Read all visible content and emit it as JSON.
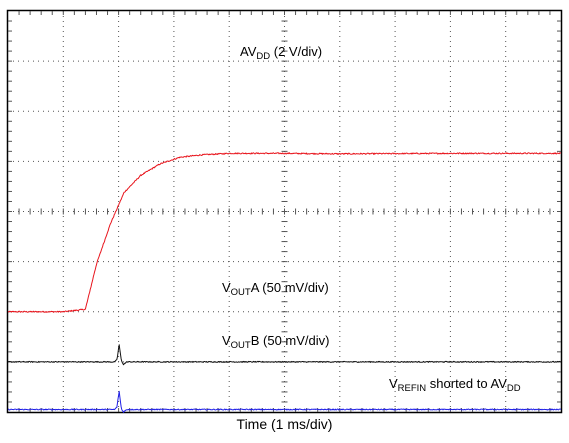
{
  "chart_data": {
    "type": "line",
    "title": "",
    "xlabel": "Time (1 ms/div)",
    "ylabel": "",
    "grid": true,
    "grid_divisions": {
      "x": 10,
      "y": 8
    },
    "xlim": [
      0,
      10
    ],
    "ylim": [
      0,
      8
    ],
    "series": [
      {
        "name": "AVDD (2 V/div)",
        "color": "#e8141c",
        "noise": 0.012,
        "x": [
          0,
          1.0,
          1.4,
          1.6,
          1.85,
          2.1,
          2.4,
          2.75,
          3.1,
          3.5,
          4.0,
          4.5,
          5.0,
          6.0,
          8.0,
          10.0
        ],
        "y": [
          2.0,
          2.0,
          2.05,
          2.95,
          3.75,
          4.38,
          4.72,
          4.95,
          5.08,
          5.13,
          5.16,
          5.16,
          5.16,
          5.15,
          5.16,
          5.16
        ],
        "label": {
          "main": "AV",
          "sub": "DD",
          "rest": " (2 V/div)"
        }
      },
      {
        "name": "VOUTA (50 mV/div)",
        "color": "#111111",
        "noise": 0.01,
        "x": [
          0,
          1.93,
          1.97,
          2.01,
          2.05,
          2.09,
          2.15,
          10.0
        ],
        "y": [
          1.0,
          1.0,
          1.04,
          1.35,
          1.02,
          0.95,
          1.0,
          1.0
        ],
        "label": {
          "main": "V",
          "sub": "OUT",
          "rest": "A (50 mV/div)"
        }
      },
      {
        "name": "VOUTB (50 mV/div)",
        "color": "#1e1ee6",
        "noise": 0.01,
        "x": [
          0,
          1.93,
          1.97,
          2.01,
          2.05,
          2.09,
          2.15,
          10.0
        ],
        "y": [
          0.05,
          0.05,
          0.1,
          0.42,
          0.06,
          0.0,
          0.05,
          0.05
        ],
        "label": {
          "main": "V",
          "sub": "OUT",
          "rest": "B (50 mV/div)"
        }
      }
    ],
    "annotations": [
      {
        "main": "V",
        "sub": "REFIN",
        "rest": " shorted to AV",
        "sub2": "DD"
      }
    ]
  }
}
